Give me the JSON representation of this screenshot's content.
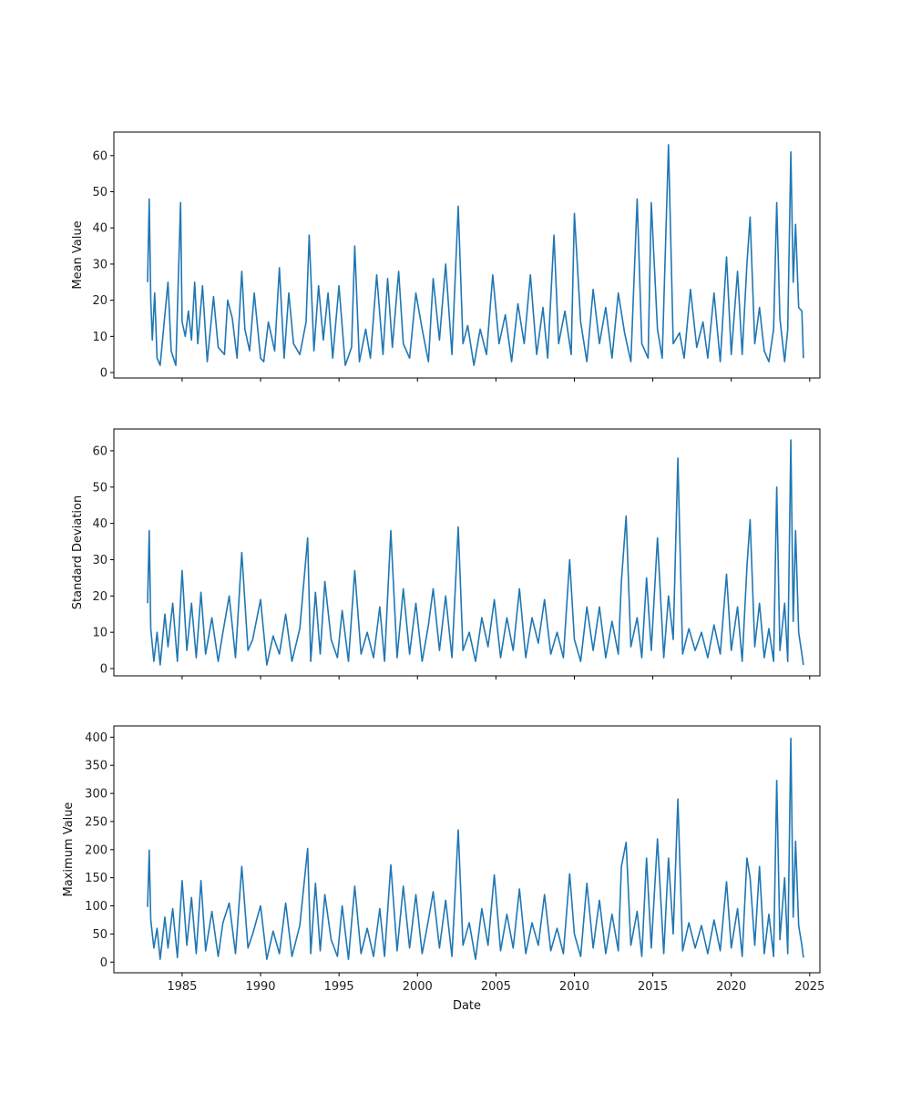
{
  "chart_data": [
    {
      "type": "line",
      "ylabel": "Mean Value",
      "xlabel": "",
      "xlim": [
        1980.65,
        2025.65
      ],
      "ylim": [
        -1.5,
        66.5
      ],
      "x_ticks": [
        1985,
        1990,
        1995,
        2000,
        2005,
        2010,
        2015,
        2020,
        2025
      ],
      "x_tick_labels": [],
      "y_ticks": [
        0,
        10,
        20,
        30,
        40,
        50,
        60
      ],
      "y_tick_labels": [
        "0",
        "10",
        "20",
        "30",
        "40",
        "50",
        "60"
      ],
      "line_color": "#1f77b4",
      "grid": false,
      "series": [
        {
          "x": [
            1982.8,
            1982.9,
            1983.0,
            1983.1,
            1983.25,
            1983.4,
            1983.6,
            1983.9,
            1984.1,
            1984.3,
            1984.6,
            1984.9,
            1985.0,
            1985.2,
            1985.4,
            1985.6,
            1985.8,
            1986.0,
            1986.3,
            1986.6,
            1987.0,
            1987.3,
            1987.7,
            1987.9,
            1988.2,
            1988.5,
            1988.8,
            1989.0,
            1989.3,
            1989.6,
            1990.0,
            1990.2,
            1990.5,
            1990.9,
            1991.2,
            1991.5,
            1991.8,
            1992.1,
            1992.5,
            1992.9,
            1993.1,
            1993.4,
            1993.7,
            1994.0,
            1994.3,
            1994.6,
            1995.0,
            1995.4,
            1995.8,
            1996.0,
            1996.3,
            1996.7,
            1997.0,
            1997.4,
            1997.8,
            1998.1,
            1998.4,
            1998.8,
            1999.1,
            1999.5,
            1999.9,
            2000.3,
            2000.7,
            2001.0,
            2001.4,
            2001.8,
            2002.2,
            2002.6,
            2002.9,
            2003.2,
            2003.6,
            2004.0,
            2004.4,
            2004.8,
            2005.2,
            2005.6,
            2006.0,
            2006.4,
            2006.8,
            2007.2,
            2007.6,
            2008.0,
            2008.3,
            2008.7,
            2009.0,
            2009.4,
            2009.8,
            2010.0,
            2010.4,
            2010.8,
            2011.2,
            2011.6,
            2012.0,
            2012.4,
            2012.8,
            2013.2,
            2013.6,
            2014.0,
            2014.3,
            2014.7,
            2014.9,
            2015.3,
            2015.6,
            2016.0,
            2016.3,
            2016.7,
            2017.0,
            2017.4,
            2017.8,
            2018.2,
            2018.5,
            2018.9,
            2019.3,
            2019.7,
            2020.0,
            2020.4,
            2020.7,
            2021.0,
            2021.2,
            2021.5,
            2021.8,
            2022.1,
            2022.4,
            2022.7,
            2022.9,
            2023.1,
            2023.4,
            2023.6,
            2023.8,
            2023.95,
            2024.1,
            2024.3,
            2024.5,
            2024.6
          ],
          "y": [
            25,
            48,
            20,
            9,
            22,
            4,
            2,
            16,
            25,
            6,
            2,
            47,
            14,
            10,
            17,
            9,
            25,
            8,
            24,
            3,
            21,
            7,
            5,
            20,
            15,
            4,
            28,
            12,
            6,
            22,
            4,
            3,
            14,
            6,
            29,
            4,
            22,
            8,
            5,
            14,
            38,
            6,
            24,
            9,
            22,
            4,
            24,
            2,
            7,
            35,
            3,
            12,
            4,
            27,
            5,
            26,
            7,
            28,
            8,
            4,
            22,
            12,
            3,
            26,
            9,
            30,
            5,
            46,
            8,
            13,
            2,
            12,
            5,
            27,
            8,
            16,
            3,
            19,
            8,
            27,
            5,
            18,
            4,
            38,
            8,
            17,
            5,
            44,
            14,
            3,
            23,
            8,
            18,
            4,
            22,
            11,
            3,
            48,
            8,
            4,
            47,
            12,
            4,
            63,
            8,
            11,
            4,
            23,
            7,
            14,
            4,
            22,
            3,
            32,
            5,
            28,
            5,
            30,
            43,
            8,
            18,
            6,
            3,
            12,
            47,
            15,
            3,
            12,
            61,
            25,
            41,
            18,
            17,
            4
          ]
        }
      ]
    },
    {
      "type": "line",
      "ylabel": "Standard Deviation",
      "xlabel": "",
      "xlim": [
        1980.65,
        2025.65
      ],
      "ylim": [
        -2,
        66
      ],
      "x_ticks": [
        1985,
        1990,
        1995,
        2000,
        2005,
        2010,
        2015,
        2020,
        2025
      ],
      "x_tick_labels": [],
      "y_ticks": [
        0,
        10,
        20,
        30,
        40,
        50,
        60
      ],
      "y_tick_labels": [
        "0",
        "10",
        "20",
        "30",
        "40",
        "50",
        "60"
      ],
      "line_color": "#1f77b4",
      "grid": false,
      "series": [
        {
          "x": [
            1982.8,
            1982.9,
            1983.0,
            1983.2,
            1983.4,
            1983.6,
            1983.9,
            1984.1,
            1984.4,
            1984.7,
            1985.0,
            1985.3,
            1985.6,
            1985.9,
            1986.2,
            1986.5,
            1986.9,
            1987.3,
            1987.6,
            1988.0,
            1988.4,
            1988.8,
            1989.2,
            1989.5,
            1990.0,
            1990.4,
            1990.8,
            1991.2,
            1991.6,
            1992.0,
            1992.5,
            1993.0,
            1993.2,
            1993.5,
            1993.8,
            1994.1,
            1994.5,
            1994.9,
            1995.2,
            1995.6,
            1996.0,
            1996.4,
            1996.8,
            1997.2,
            1997.6,
            1997.9,
            1998.3,
            1998.7,
            1999.1,
            1999.5,
            1999.9,
            2000.3,
            2000.7,
            2001.0,
            2001.4,
            2001.8,
            2002.2,
            2002.6,
            2002.9,
            2003.3,
            2003.7,
            2004.1,
            2004.5,
            2004.9,
            2005.3,
            2005.7,
            2006.1,
            2006.5,
            2006.9,
            2007.3,
            2007.7,
            2008.1,
            2008.5,
            2008.9,
            2009.3,
            2009.7,
            2010.0,
            2010.4,
            2010.8,
            2011.2,
            2011.6,
            2012.0,
            2012.4,
            2012.8,
            2013.0,
            2013.3,
            2013.6,
            2014.0,
            2014.3,
            2014.6,
            2014.9,
            2015.3,
            2015.7,
            2016.0,
            2016.3,
            2016.6,
            2016.9,
            2017.3,
            2017.7,
            2018.1,
            2018.5,
            2018.9,
            2019.3,
            2019.7,
            2020.0,
            2020.4,
            2020.7,
            2021.0,
            2021.2,
            2021.5,
            2021.8,
            2022.1,
            2022.4,
            2022.7,
            2022.9,
            2023.1,
            2023.4,
            2023.6,
            2023.8,
            2023.95,
            2024.1,
            2024.3,
            2024.5,
            2024.6
          ],
          "y": [
            18,
            38,
            11,
            2,
            10,
            1,
            15,
            6,
            18,
            2,
            27,
            5,
            18,
            3,
            21,
            4,
            14,
            2,
            10,
            20,
            3,
            32,
            5,
            8,
            19,
            1,
            9,
            4,
            15,
            2,
            11,
            36,
            2,
            21,
            4,
            24,
            8,
            3,
            16,
            2,
            27,
            4,
            10,
            3,
            17,
            2,
            38,
            3,
            22,
            4,
            18,
            2,
            12,
            22,
            5,
            20,
            3,
            39,
            5,
            10,
            2,
            14,
            6,
            19,
            3,
            14,
            5,
            22,
            3,
            14,
            7,
            19,
            4,
            10,
            3,
            30,
            8,
            2,
            17,
            5,
            17,
            3,
            13,
            4,
            24,
            42,
            6,
            14,
            3,
            25,
            5,
            36,
            3,
            20,
            8,
            58,
            4,
            11,
            5,
            10,
            3,
            12,
            4,
            26,
            5,
            17,
            2,
            28,
            41,
            6,
            18,
            3,
            11,
            2,
            50,
            5,
            18,
            2,
            63,
            13,
            38,
            10,
            4,
            1
          ]
        }
      ]
    },
    {
      "type": "line",
      "ylabel": "Maximum Value",
      "xlabel": "Date",
      "xlim": [
        1980.65,
        2025.65
      ],
      "ylim": [
        -19,
        420
      ],
      "x_ticks": [
        1985,
        1990,
        1995,
        2000,
        2005,
        2010,
        2015,
        2020,
        2025
      ],
      "x_tick_labels": [
        "1985",
        "1990",
        "1995",
        "2000",
        "2005",
        "2010",
        "2015",
        "2020",
        "2025"
      ],
      "y_ticks": [
        0,
        50,
        100,
        150,
        200,
        250,
        300,
        350,
        400
      ],
      "y_tick_labels": [
        "0",
        "50",
        "100",
        "150",
        "200",
        "250",
        "300",
        "350",
        "400"
      ],
      "line_color": "#1f77b4",
      "grid": false,
      "series": [
        {
          "x": [
            1982.8,
            1982.9,
            1983.0,
            1983.2,
            1983.4,
            1983.6,
            1983.9,
            1984.1,
            1984.4,
            1984.7,
            1985.0,
            1985.3,
            1985.6,
            1985.9,
            1986.2,
            1986.5,
            1986.9,
            1987.3,
            1987.6,
            1988.0,
            1988.4,
            1988.8,
            1989.2,
            1989.5,
            1990.0,
            1990.4,
            1990.8,
            1991.2,
            1991.6,
            1992.0,
            1992.5,
            1993.0,
            1993.2,
            1993.5,
            1993.8,
            1994.1,
            1994.5,
            1994.9,
            1995.2,
            1995.6,
            1996.0,
            1996.4,
            1996.8,
            1997.2,
            1997.6,
            1997.9,
            1998.3,
            1998.7,
            1999.1,
            1999.5,
            1999.9,
            2000.3,
            2000.7,
            2001.0,
            2001.4,
            2001.8,
            2002.2,
            2002.6,
            2002.9,
            2003.3,
            2003.7,
            2004.1,
            2004.5,
            2004.9,
            2005.3,
            2005.7,
            2006.1,
            2006.5,
            2006.9,
            2007.3,
            2007.7,
            2008.1,
            2008.5,
            2008.9,
            2009.3,
            2009.7,
            2010.0,
            2010.4,
            2010.8,
            2011.2,
            2011.6,
            2012.0,
            2012.4,
            2012.8,
            2013.0,
            2013.3,
            2013.6,
            2014.0,
            2014.3,
            2014.6,
            2014.9,
            2015.3,
            2015.7,
            2016.0,
            2016.3,
            2016.6,
            2016.9,
            2017.3,
            2017.7,
            2018.1,
            2018.5,
            2018.9,
            2019.3,
            2019.7,
            2020.0,
            2020.4,
            2020.7,
            2021.0,
            2021.2,
            2021.5,
            2021.8,
            2022.1,
            2022.4,
            2022.7,
            2022.9,
            2023.1,
            2023.4,
            2023.6,
            2023.8,
            2023.95,
            2024.1,
            2024.3,
            2024.5,
            2024.6
          ],
          "y": [
            98,
            199,
            75,
            25,
            60,
            5,
            80,
            25,
            95,
            8,
            145,
            30,
            115,
            15,
            145,
            20,
            90,
            10,
            70,
            105,
            15,
            170,
            25,
            50,
            100,
            5,
            55,
            15,
            105,
            10,
            65,
            202,
            15,
            140,
            20,
            120,
            40,
            10,
            100,
            5,
            135,
            15,
            60,
            10,
            95,
            10,
            173,
            20,
            135,
            25,
            120,
            15,
            75,
            125,
            25,
            110,
            10,
            235,
            30,
            70,
            5,
            95,
            30,
            155,
            20,
            85,
            25,
            130,
            15,
            70,
            30,
            120,
            20,
            60,
            15,
            157,
            50,
            10,
            140,
            25,
            110,
            15,
            85,
            20,
            170,
            213,
            30,
            90,
            10,
            185,
            25,
            219,
            15,
            185,
            50,
            290,
            20,
            70,
            25,
            65,
            15,
            75,
            20,
            143,
            25,
            95,
            10,
            185,
            150,
            30,
            170,
            15,
            85,
            10,
            323,
            40,
            150,
            15,
            398,
            80,
            215,
            65,
            30,
            8
          ]
        }
      ]
    }
  ]
}
